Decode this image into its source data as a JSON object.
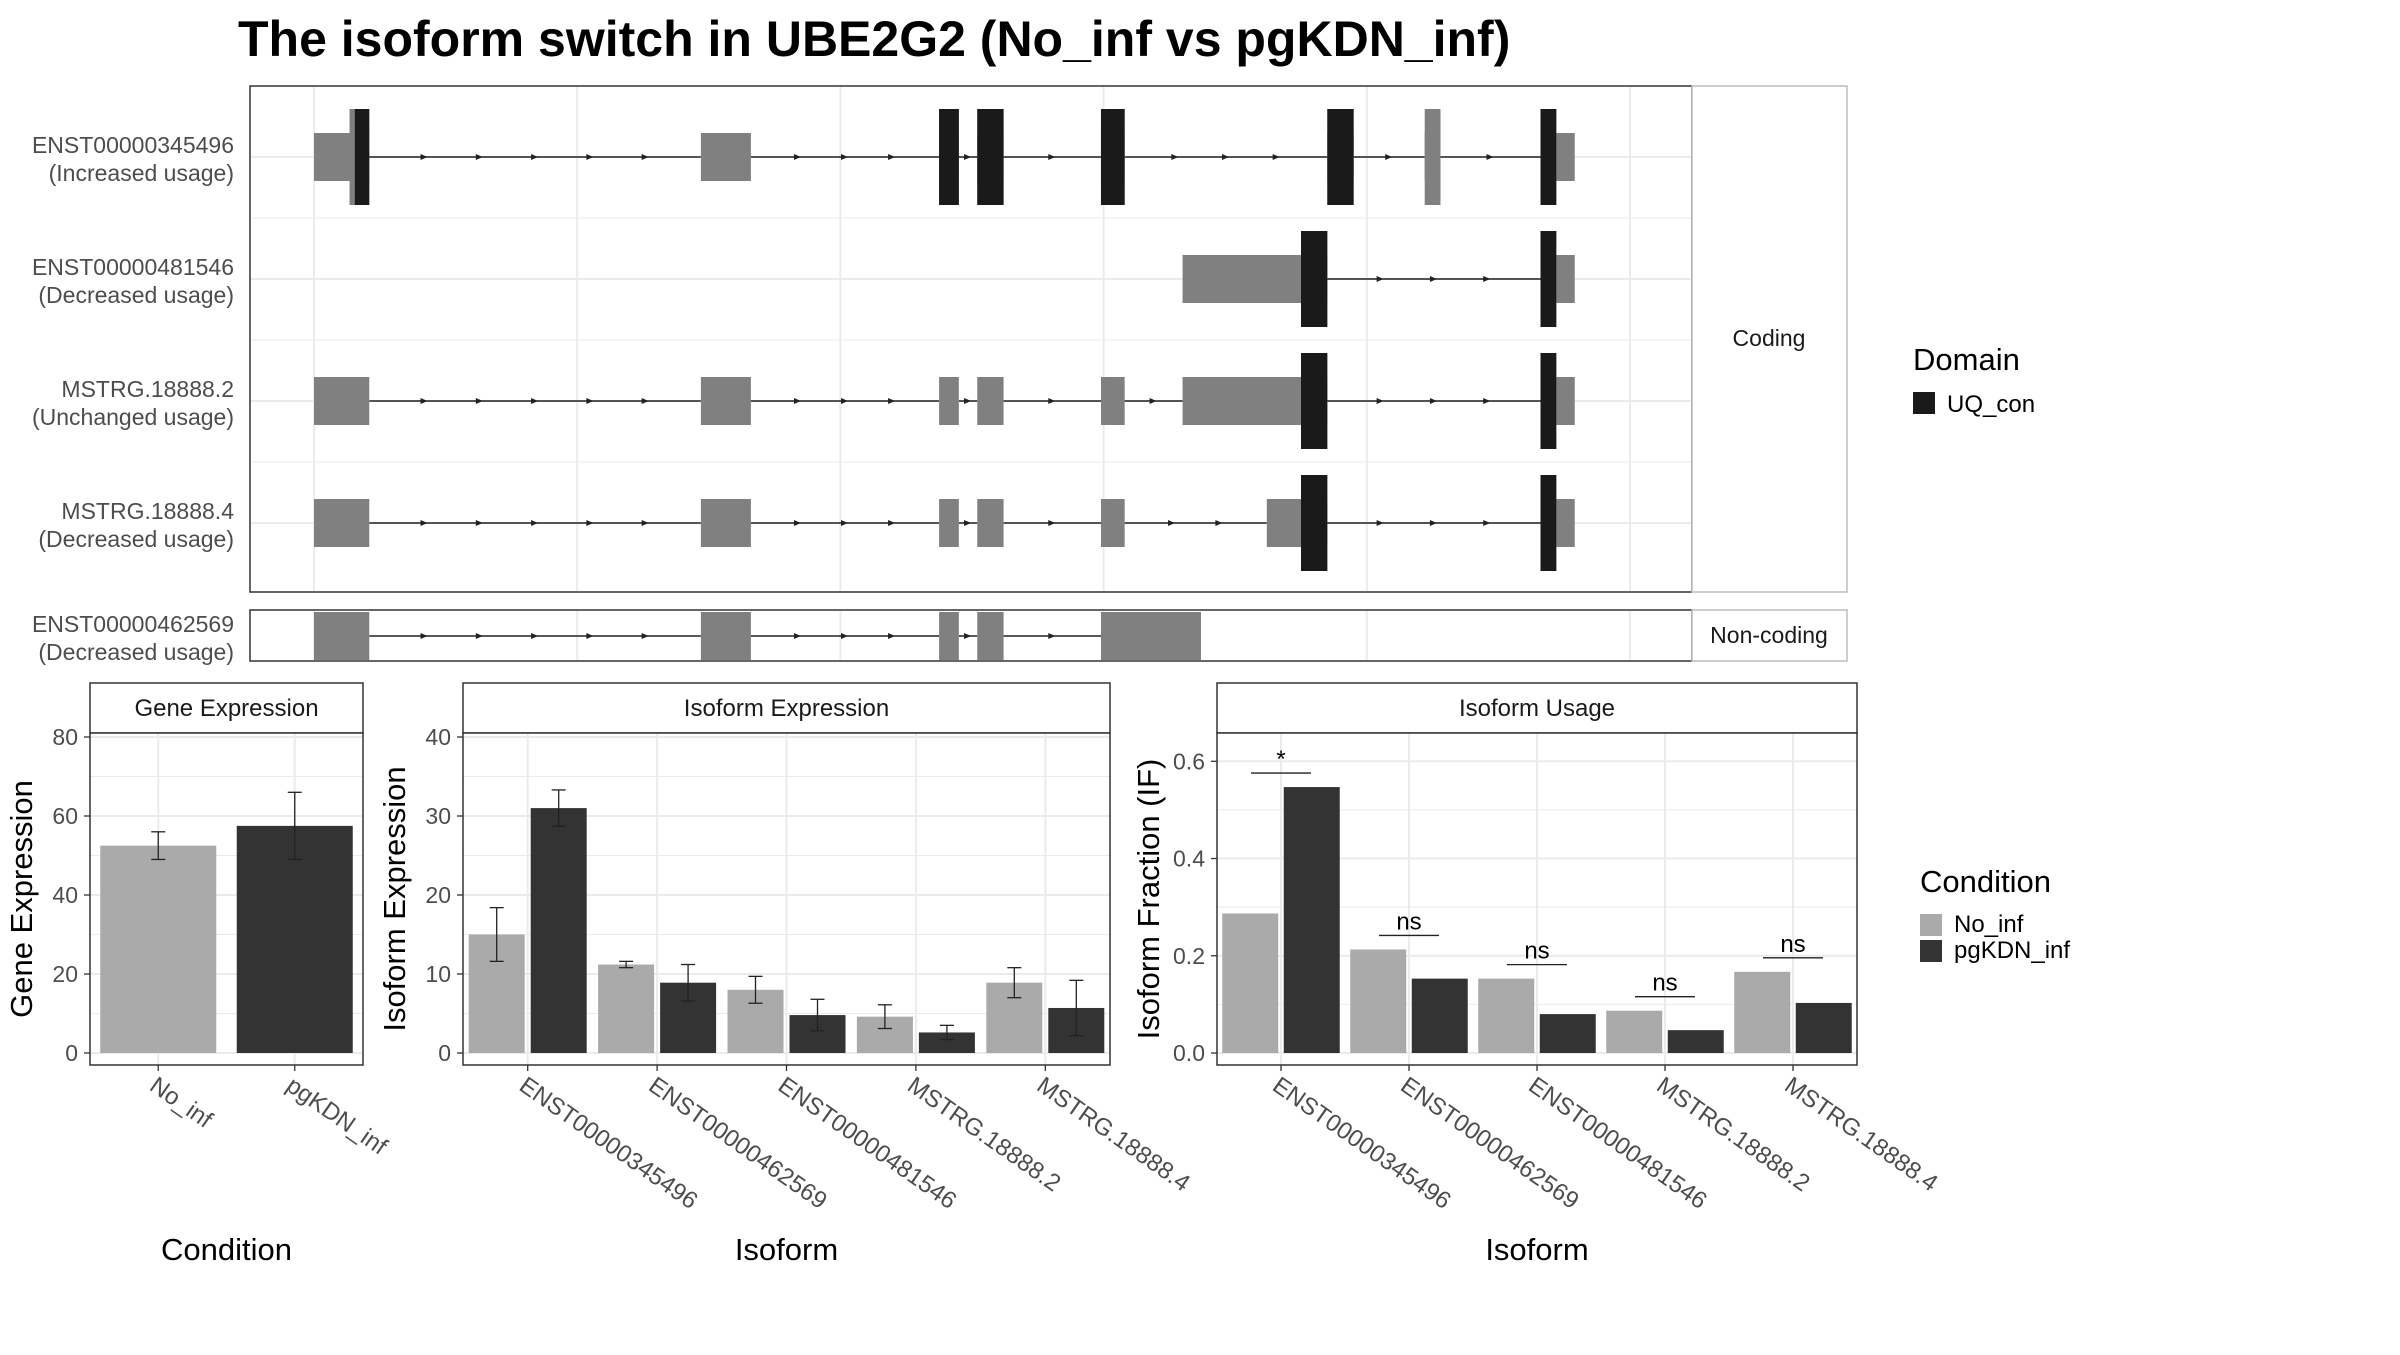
{
  "title": "The isoform switch in UBE2G2 (No_inf vs pgKDN_inf)",
  "colors": {
    "no_inf": "#aaaaaa",
    "pgkdn_inf": "#333333",
    "domain": "#1a1a1a",
    "utr_exon": "#808080",
    "grid": "#ebebeb",
    "strip": "#ffffff"
  },
  "structure": {
    "facets": {
      "coding": "Coding",
      "noncoding": "Non-coding"
    },
    "legend": {
      "title": "Domain",
      "items": [
        {
          "label": "UQ_con",
          "color": "#1a1a1a"
        }
      ]
    },
    "transcripts": [
      {
        "id": "ENST00000345496",
        "usage": "(Increased usage)",
        "group": "coding",
        "exons": [
          [
            0,
            210
          ],
          [
            1470,
            1660
          ],
          [
            2375,
            2450
          ],
          [
            2520,
            2620
          ],
          [
            2990,
            3080
          ],
          [
            3850,
            3950
          ],
          [
            4220,
            4280
          ],
          [
            4660,
            4790
          ]
        ],
        "cds": [
          [
            135,
            210
          ],
          [
            2375,
            2450
          ],
          [
            2520,
            2620
          ],
          [
            2990,
            3080
          ],
          [
            3850,
            3950
          ],
          [
            4220,
            4280
          ],
          [
            4660,
            4720
          ]
        ],
        "domain": [
          [
            155,
            210
          ],
          [
            2375,
            2450
          ],
          [
            2520,
            2620
          ],
          [
            2990,
            3080
          ],
          [
            3850,
            3950
          ],
          [
            4660,
            4720
          ]
        ]
      },
      {
        "id": "ENST00000481546",
        "usage": "(Decreased usage)",
        "group": "coding",
        "exons": [
          [
            3300,
            3850
          ],
          [
            4660,
            4790
          ]
        ],
        "cds": [
          [
            3750,
            3850
          ],
          [
            4660,
            4720
          ]
        ],
        "domain": [
          [
            3750,
            3850
          ],
          [
            4660,
            4720
          ]
        ]
      },
      {
        "id": "MSTRG.18888.2",
        "usage": "(Unchanged usage)",
        "group": "coding",
        "exons": [
          [
            0,
            210
          ],
          [
            1470,
            1660
          ],
          [
            2375,
            2450
          ],
          [
            2520,
            2620
          ],
          [
            2990,
            3080
          ],
          [
            3300,
            3850
          ],
          [
            4660,
            4790
          ]
        ],
        "cds": [
          [
            3750,
            3850
          ],
          [
            4660,
            4720
          ]
        ],
        "domain": [
          [
            3750,
            3850
          ],
          [
            4660,
            4720
          ]
        ]
      },
      {
        "id": "MSTRG.18888.4",
        "usage": "(Decreased usage)",
        "group": "coding",
        "exons": [
          [
            0,
            210
          ],
          [
            1470,
            1660
          ],
          [
            2375,
            2450
          ],
          [
            2520,
            2620
          ],
          [
            2990,
            3080
          ],
          [
            3620,
            3850
          ],
          [
            4660,
            4790
          ]
        ],
        "cds": [
          [
            3750,
            3850
          ],
          [
            4660,
            4720
          ]
        ],
        "domain": [
          [
            3750,
            3850
          ],
          [
            4660,
            4720
          ]
        ]
      },
      {
        "id": "ENST00000462569",
        "usage": "(Decreased usage)",
        "group": "noncoding",
        "exons": [
          [
            0,
            210
          ],
          [
            1470,
            1660
          ],
          [
            2375,
            2450
          ],
          [
            2520,
            2620
          ],
          [
            2990,
            3370
          ]
        ],
        "cds": [],
        "domain": []
      }
    ]
  },
  "chart_data": [
    {
      "type": "bar",
      "title": "Gene Expression",
      "xlabel": "Condition",
      "ylabel": "Gene Expression",
      "ylim": [
        0,
        80
      ],
      "yticks": [
        0,
        20,
        40,
        60,
        80
      ],
      "categories": [
        "No_inf",
        "pgKDN_inf"
      ],
      "values": [
        52.5,
        57.5
      ],
      "error_low": [
        49.0,
        49.0
      ],
      "error_high": [
        56.0,
        66.0
      ]
    },
    {
      "type": "bar",
      "title": "Isoform Expression",
      "xlabel": "Isoform",
      "ylabel": "Isoform Expression",
      "ylim": [
        0,
        40
      ],
      "yticks": [
        0,
        10,
        20,
        30,
        40
      ],
      "categories": [
        "ENST00000345496",
        "ENST00000462569",
        "ENST00000481546",
        "MSTRG.18888.2",
        "MSTRG.18888.4"
      ],
      "series": [
        {
          "name": "No_inf",
          "values": [
            15.0,
            11.2,
            8.0,
            4.6,
            8.9
          ],
          "error_low": [
            11.6,
            10.8,
            6.3,
            3.1,
            7.0
          ],
          "error_high": [
            18.4,
            11.6,
            9.7,
            6.1,
            10.8
          ]
        },
        {
          "name": "pgKDN_inf",
          "values": [
            31.0,
            8.9,
            4.8,
            2.6,
            5.7
          ],
          "error_low": [
            28.7,
            6.6,
            2.8,
            1.7,
            2.2
          ],
          "error_high": [
            33.3,
            11.2,
            6.8,
            3.5,
            9.2
          ]
        }
      ]
    },
    {
      "type": "bar",
      "title": "Isoform Usage",
      "xlabel": "Isoform",
      "ylabel": "Isoform Fraction (IF)",
      "ylim": [
        0,
        0.65
      ],
      "yticks": [
        0.0,
        0.2,
        0.4,
        0.6
      ],
      "categories": [
        "ENST00000345496",
        "ENST00000462569",
        "ENST00000481546",
        "MSTRG.18888.2",
        "MSTRG.18888.4"
      ],
      "series": [
        {
          "name": "No_inf",
          "values": [
            0.287,
            0.213,
            0.153,
            0.087,
            0.167
          ]
        },
        {
          "name": "pgKDN_inf",
          "values": [
            0.547,
            0.153,
            0.08,
            0.047,
            0.103
          ]
        }
      ],
      "significance": [
        "*",
        "ns",
        "ns",
        "ns",
        "ns"
      ]
    }
  ],
  "condition_legend": {
    "title": "Condition",
    "items": [
      {
        "label": "No_inf",
        "color": "#aaaaaa"
      },
      {
        "label": "pgKDN_inf",
        "color": "#333333"
      }
    ]
  }
}
